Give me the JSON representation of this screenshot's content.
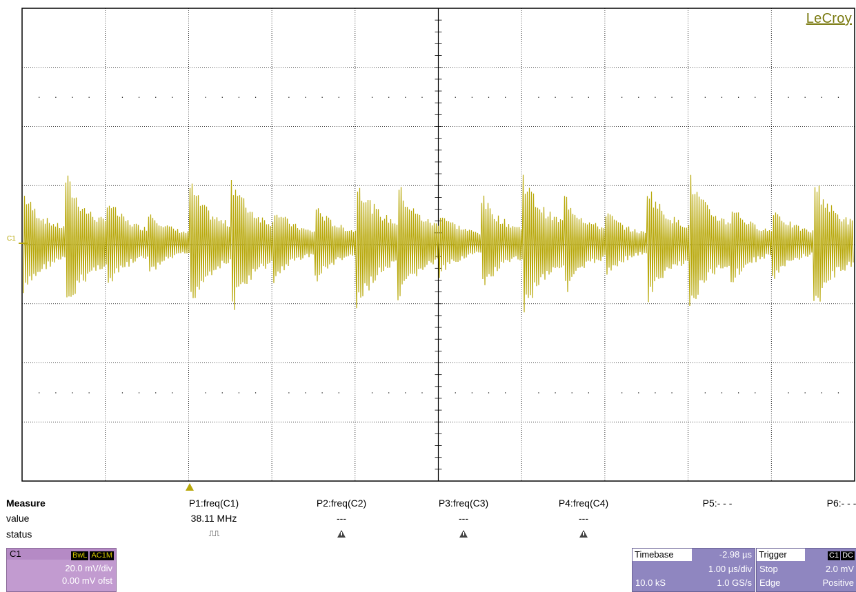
{
  "brand": "LeCroy",
  "channel_marker": "C1",
  "waveform_color": "#b8a80a",
  "measure": {
    "title": "Measure",
    "row_value_label": "value",
    "row_status_label": "status",
    "params": [
      {
        "label": "P1:freq(C1)",
        "value": "38.11 MHz",
        "status": "pulse-icon"
      },
      {
        "label": "P2:freq(C2)",
        "value": "---",
        "status": "warning-icon"
      },
      {
        "label": "P3:freq(C3)",
        "value": "---",
        "status": "warning-icon"
      },
      {
        "label": "P4:freq(C4)",
        "value": "---",
        "status": "warning-icon"
      },
      {
        "label": "P5:- - -",
        "value": "",
        "status": ""
      },
      {
        "label": "P6:- - -",
        "value": "",
        "status": ""
      }
    ],
    "pulse_glyph": "⎍⎍"
  },
  "c1_panel": {
    "name": "C1",
    "badges": [
      "BwL",
      "AC1M"
    ],
    "scale": "20.0 mV/div",
    "offset": "0.00 mV ofst"
  },
  "timebase_panel": {
    "title": "Timebase",
    "delay": "-2.98 µs",
    "scale": "1.00 µs/div",
    "samples": "10.0 kS",
    "rate": "1.0 GS/s"
  },
  "trigger_panel": {
    "title": "Trigger",
    "badges": [
      "C1",
      "DC"
    ],
    "mode": "Stop",
    "level": "2.0 mV",
    "type": "Edge",
    "slope": "Positive"
  }
}
